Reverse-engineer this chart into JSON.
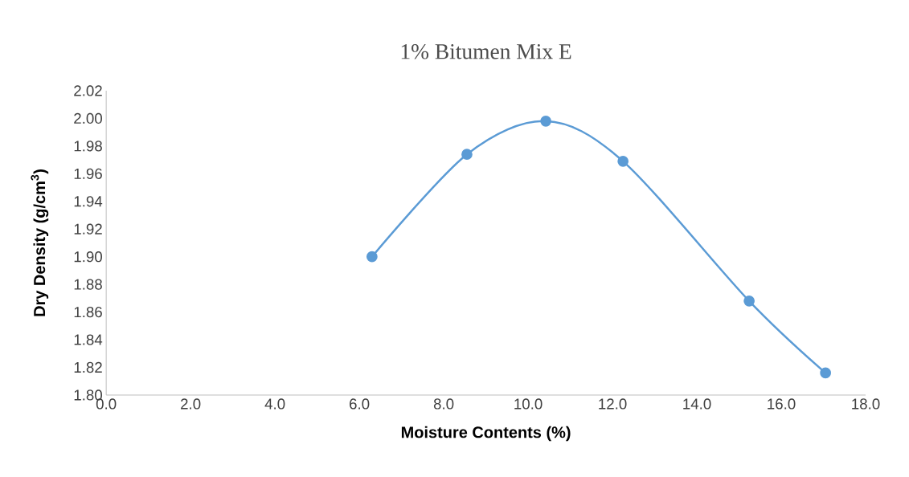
{
  "chart_data": {
    "type": "line",
    "title": "1% Bitumen Mix E",
    "xlabel": "Moisture Contents (%)",
    "ylabel": "Dry Density (g/cm$^{3}$)",
    "x": [
      6.3,
      8.55,
      10.42,
      12.25,
      15.24,
      17.05
    ],
    "series": [
      {
        "color": "#5b9bd5",
        "values": [
          1.9,
          1.974,
          1.998,
          1.969,
          1.868,
          1.816
        ]
      }
    ],
    "marker": "circle",
    "xlim": [
      0,
      18
    ],
    "xticks": [
      {
        "value": 0,
        "label": "0.0"
      },
      {
        "value": 2,
        "label": "2.0"
      },
      {
        "value": 4,
        "label": "4.0"
      },
      {
        "value": 6,
        "label": "6.0"
      },
      {
        "value": 8,
        "label": "8.0"
      },
      {
        "value": 10,
        "label": "10.0"
      },
      {
        "value": 12,
        "label": "12.0"
      },
      {
        "value": 14,
        "label": "14.0"
      },
      {
        "value": 16,
        "label": "16.0"
      },
      {
        "value": 18,
        "label": "18.0"
      }
    ],
    "ylim": [
      1.8,
      2.02
    ],
    "yticks": [
      {
        "value": 1.8,
        "label": "1.80"
      },
      {
        "value": 1.82,
        "label": "1.82"
      },
      {
        "value": 1.84,
        "label": "1.84"
      },
      {
        "value": 1.86,
        "label": "1.86"
      },
      {
        "value": 1.88,
        "label": "1.88"
      },
      {
        "value": 1.9,
        "label": "1.90"
      },
      {
        "value": 1.92,
        "label": "1.92"
      },
      {
        "value": 1.94,
        "label": "1.94"
      },
      {
        "value": 1.96,
        "label": "1.96"
      },
      {
        "value": 1.98,
        "label": "1.98"
      },
      {
        "value": 2.0,
        "label": "2.00"
      },
      {
        "value": 2.02,
        "label": "2.02"
      }
    ]
  }
}
